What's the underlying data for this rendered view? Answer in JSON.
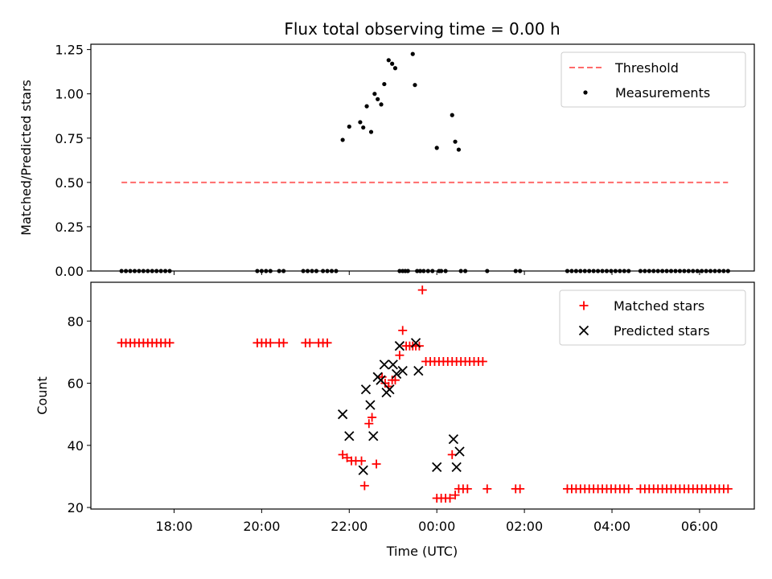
{
  "chart_data": {
    "type": "scatter",
    "title": "Flux total observing time = 0.00 h",
    "xlabel": "Time (UTC)",
    "x_unit": "hours from 00:00 UTC",
    "xlim": [
      -7.9,
      7.25
    ],
    "x_ticks": [
      -6,
      -4,
      -2,
      0,
      2,
      4,
      6
    ],
    "x_tick_labels": [
      "18:00",
      "20:00",
      "22:00",
      "00:00",
      "02:00",
      "04:00",
      "06:00"
    ],
    "panels": [
      {
        "ylabel": "Matched/Predicted stars",
        "ylim": [
          0,
          1.28
        ],
        "y_ticks": [
          0,
          0.25,
          0.5,
          0.75,
          1.0,
          1.25
        ],
        "y_tick_labels": [
          "0.00",
          "0.25",
          "0.50",
          "0.75",
          "1.00",
          "1.25"
        ],
        "legend": {
          "position": "top-right",
          "entries": [
            "Threshold",
            "Measurements"
          ]
        },
        "threshold": {
          "name": "Threshold",
          "color": "#ff6b6b",
          "y": 0.5,
          "x": [
            -7.2,
            6.65
          ]
        },
        "measurements": {
          "name": "Measurements",
          "color": "#000000",
          "points": [
            [
              -7.2,
              0
            ],
            [
              -7.1,
              0
            ],
            [
              -7.0,
              0
            ],
            [
              -6.9,
              0
            ],
            [
              -6.8,
              0
            ],
            [
              -6.7,
              0
            ],
            [
              -6.6,
              0
            ],
            [
              -6.5,
              0
            ],
            [
              -6.4,
              0
            ],
            [
              -6.3,
              0
            ],
            [
              -6.2,
              0
            ],
            [
              -6.1,
              0
            ],
            [
              -4.1,
              0
            ],
            [
              -4.0,
              0
            ],
            [
              -3.9,
              0
            ],
            [
              -3.8,
              0
            ],
            [
              -3.6,
              0
            ],
            [
              -3.5,
              0
            ],
            [
              -3.05,
              0
            ],
            [
              -2.95,
              0
            ],
            [
              -2.85,
              0
            ],
            [
              -2.75,
              0
            ],
            [
              -2.6,
              0
            ],
            [
              -2.5,
              0
            ],
            [
              -2.4,
              0
            ],
            [
              -2.3,
              0
            ],
            [
              -2.15,
              0.74
            ],
            [
              -2.0,
              0.815
            ],
            [
              -1.75,
              0.84
            ],
            [
              -1.68,
              0.81
            ],
            [
              -1.6,
              0.93
            ],
            [
              -1.5,
              0.785
            ],
            [
              -1.42,
              1.0
            ],
            [
              -1.35,
              0.97
            ],
            [
              -1.27,
              0.94
            ],
            [
              -1.2,
              1.055
            ],
            [
              -1.1,
              1.19
            ],
            [
              -1.02,
              1.17
            ],
            [
              -0.95,
              1.145
            ],
            [
              -0.85,
              0
            ],
            [
              -0.78,
              0
            ],
            [
              -0.72,
              0
            ],
            [
              -0.66,
              0
            ],
            [
              -0.55,
              1.225
            ],
            [
              -0.5,
              1.05
            ],
            [
              -0.45,
              0
            ],
            [
              -0.38,
              0
            ],
            [
              -0.3,
              0
            ],
            [
              -0.2,
              0
            ],
            [
              -0.1,
              0
            ],
            [
              0.0,
              0.695
            ],
            [
              0.05,
              0
            ],
            [
              0.1,
              0
            ],
            [
              0.2,
              0
            ],
            [
              0.35,
              0.88
            ],
            [
              0.42,
              0.73
            ],
            [
              0.5,
              0.685
            ],
            [
              0.55,
              0
            ],
            [
              0.65,
              0
            ],
            [
              1.15,
              0
            ],
            [
              1.8,
              0
            ],
            [
              1.9,
              0
            ],
            [
              2.98,
              0
            ],
            [
              3.08,
              0
            ],
            [
              3.18,
              0
            ],
            [
              3.28,
              0
            ],
            [
              3.38,
              0
            ],
            [
              3.48,
              0
            ],
            [
              3.58,
              0
            ],
            [
              3.68,
              0
            ],
            [
              3.78,
              0
            ],
            [
              3.88,
              0
            ],
            [
              3.98,
              0
            ],
            [
              4.08,
              0
            ],
            [
              4.18,
              0
            ],
            [
              4.28,
              0
            ],
            [
              4.38,
              0
            ],
            [
              4.65,
              0
            ],
            [
              4.75,
              0
            ],
            [
              4.85,
              0
            ],
            [
              4.95,
              0
            ],
            [
              5.05,
              0
            ],
            [
              5.15,
              0
            ],
            [
              5.25,
              0
            ],
            [
              5.35,
              0
            ],
            [
              5.45,
              0
            ],
            [
              5.55,
              0
            ],
            [
              5.65,
              0
            ],
            [
              5.75,
              0
            ],
            [
              5.85,
              0
            ],
            [
              5.95,
              0
            ],
            [
              6.05,
              0
            ],
            [
              6.15,
              0
            ],
            [
              6.25,
              0
            ],
            [
              6.35,
              0
            ],
            [
              6.45,
              0
            ],
            [
              6.55,
              0
            ],
            [
              6.65,
              0
            ]
          ]
        }
      },
      {
        "ylabel": "Count",
        "ylim": [
          19.5,
          92.5
        ],
        "y_ticks": [
          20,
          40,
          60,
          80
        ],
        "y_tick_labels": [
          "20",
          "40",
          "60",
          "80"
        ],
        "legend": {
          "position": "top-right",
          "entries": [
            "Matched stars",
            "Predicted stars"
          ]
        },
        "series": [
          {
            "name": "Matched stars",
            "marker": "plus",
            "color": "#ff0000",
            "points": [
              [
                -7.2,
                73
              ],
              [
                -7.1,
                73
              ],
              [
                -7.0,
                73
              ],
              [
                -6.9,
                73
              ],
              [
                -6.8,
                73
              ],
              [
                -6.7,
                73
              ],
              [
                -6.6,
                73
              ],
              [
                -6.5,
                73
              ],
              [
                -6.4,
                73
              ],
              [
                -6.3,
                73
              ],
              [
                -6.2,
                73
              ],
              [
                -6.1,
                73
              ],
              [
                -4.1,
                73
              ],
              [
                -4.0,
                73
              ],
              [
                -3.9,
                73
              ],
              [
                -3.8,
                73
              ],
              [
                -3.6,
                73
              ],
              [
                -3.5,
                73
              ],
              [
                -3.0,
                73
              ],
              [
                -2.9,
                73
              ],
              [
                -2.7,
                73
              ],
              [
                -2.6,
                73
              ],
              [
                -2.5,
                73
              ],
              [
                -2.15,
                37
              ],
              [
                -2.05,
                36
              ],
              [
                -1.95,
                35
              ],
              [
                -1.85,
                35
              ],
              [
                -1.72,
                35
              ],
              [
                -1.65,
                27
              ],
              [
                -1.55,
                47
              ],
              [
                -1.48,
                49
              ],
              [
                -1.38,
                34
              ],
              [
                -1.25,
                62
              ],
              [
                -1.18,
                60
              ],
              [
                -1.1,
                59
              ],
              [
                -1.02,
                61
              ],
              [
                -0.95,
                61
              ],
              [
                -0.85,
                69
              ],
              [
                -0.78,
                77
              ],
              [
                -0.7,
                72
              ],
              [
                -0.62,
                72
              ],
              [
                -0.55,
                72
              ],
              [
                -0.48,
                72
              ],
              [
                -0.4,
                72
              ],
              [
                -0.33,
                90
              ],
              [
                -0.25,
                67
              ],
              [
                -0.15,
                67
              ],
              [
                -0.05,
                67
              ],
              [
                0.05,
                67
              ],
              [
                0.15,
                67
              ],
              [
                0.25,
                67
              ],
              [
                0.35,
                67
              ],
              [
                0.45,
                67
              ],
              [
                0.55,
                67
              ],
              [
                0.65,
                67
              ],
              [
                0.75,
                67
              ],
              [
                0.85,
                67
              ],
              [
                0.95,
                67
              ],
              [
                1.05,
                67
              ],
              [
                0.0,
                23
              ],
              [
                0.1,
                23
              ],
              [
                0.2,
                23
              ],
              [
                0.3,
                23
              ],
              [
                0.35,
                37
              ],
              [
                0.42,
                24
              ],
              [
                0.5,
                26
              ],
              [
                0.6,
                26
              ],
              [
                0.7,
                26
              ],
              [
                1.15,
                26
              ],
              [
                1.8,
                26
              ],
              [
                1.9,
                26
              ],
              [
                2.98,
                26
              ],
              [
                3.08,
                26
              ],
              [
                3.18,
                26
              ],
              [
                3.28,
                26
              ],
              [
                3.38,
                26
              ],
              [
                3.48,
                26
              ],
              [
                3.58,
                26
              ],
              [
                3.68,
                26
              ],
              [
                3.78,
                26
              ],
              [
                3.88,
                26
              ],
              [
                3.98,
                26
              ],
              [
                4.08,
                26
              ],
              [
                4.18,
                26
              ],
              [
                4.28,
                26
              ],
              [
                4.38,
                26
              ],
              [
                4.65,
                26
              ],
              [
                4.75,
                26
              ],
              [
                4.85,
                26
              ],
              [
                4.95,
                26
              ],
              [
                5.05,
                26
              ],
              [
                5.15,
                26
              ],
              [
                5.25,
                26
              ],
              [
                5.35,
                26
              ],
              [
                5.45,
                26
              ],
              [
                5.55,
                26
              ],
              [
                5.65,
                26
              ],
              [
                5.75,
                26
              ],
              [
                5.85,
                26
              ],
              [
                5.95,
                26
              ],
              [
                6.05,
                26
              ],
              [
                6.15,
                26
              ],
              [
                6.25,
                26
              ],
              [
                6.35,
                26
              ],
              [
                6.45,
                26
              ],
              [
                6.55,
                26
              ],
              [
                6.65,
                26
              ]
            ]
          },
          {
            "name": "Predicted stars",
            "marker": "x",
            "color": "#000000",
            "points": [
              [
                -2.15,
                50
              ],
              [
                -2.0,
                43
              ],
              [
                -1.68,
                32
              ],
              [
                -1.62,
                58
              ],
              [
                -1.52,
                53
              ],
              [
                -1.45,
                43
              ],
              [
                -1.35,
                62
              ],
              [
                -1.28,
                61
              ],
              [
                -1.2,
                66
              ],
              [
                -1.15,
                57
              ],
              [
                -1.08,
                58
              ],
              [
                -1.0,
                66
              ],
              [
                -0.92,
                63
              ],
              [
                -0.85,
                72
              ],
              [
                -0.78,
                64
              ],
              [
                -0.48,
                73
              ],
              [
                -0.42,
                64
              ],
              [
                0.0,
                33
              ],
              [
                0.38,
                42
              ],
              [
                0.45,
                33
              ],
              [
                0.52,
                38
              ]
            ]
          }
        ]
      }
    ]
  }
}
